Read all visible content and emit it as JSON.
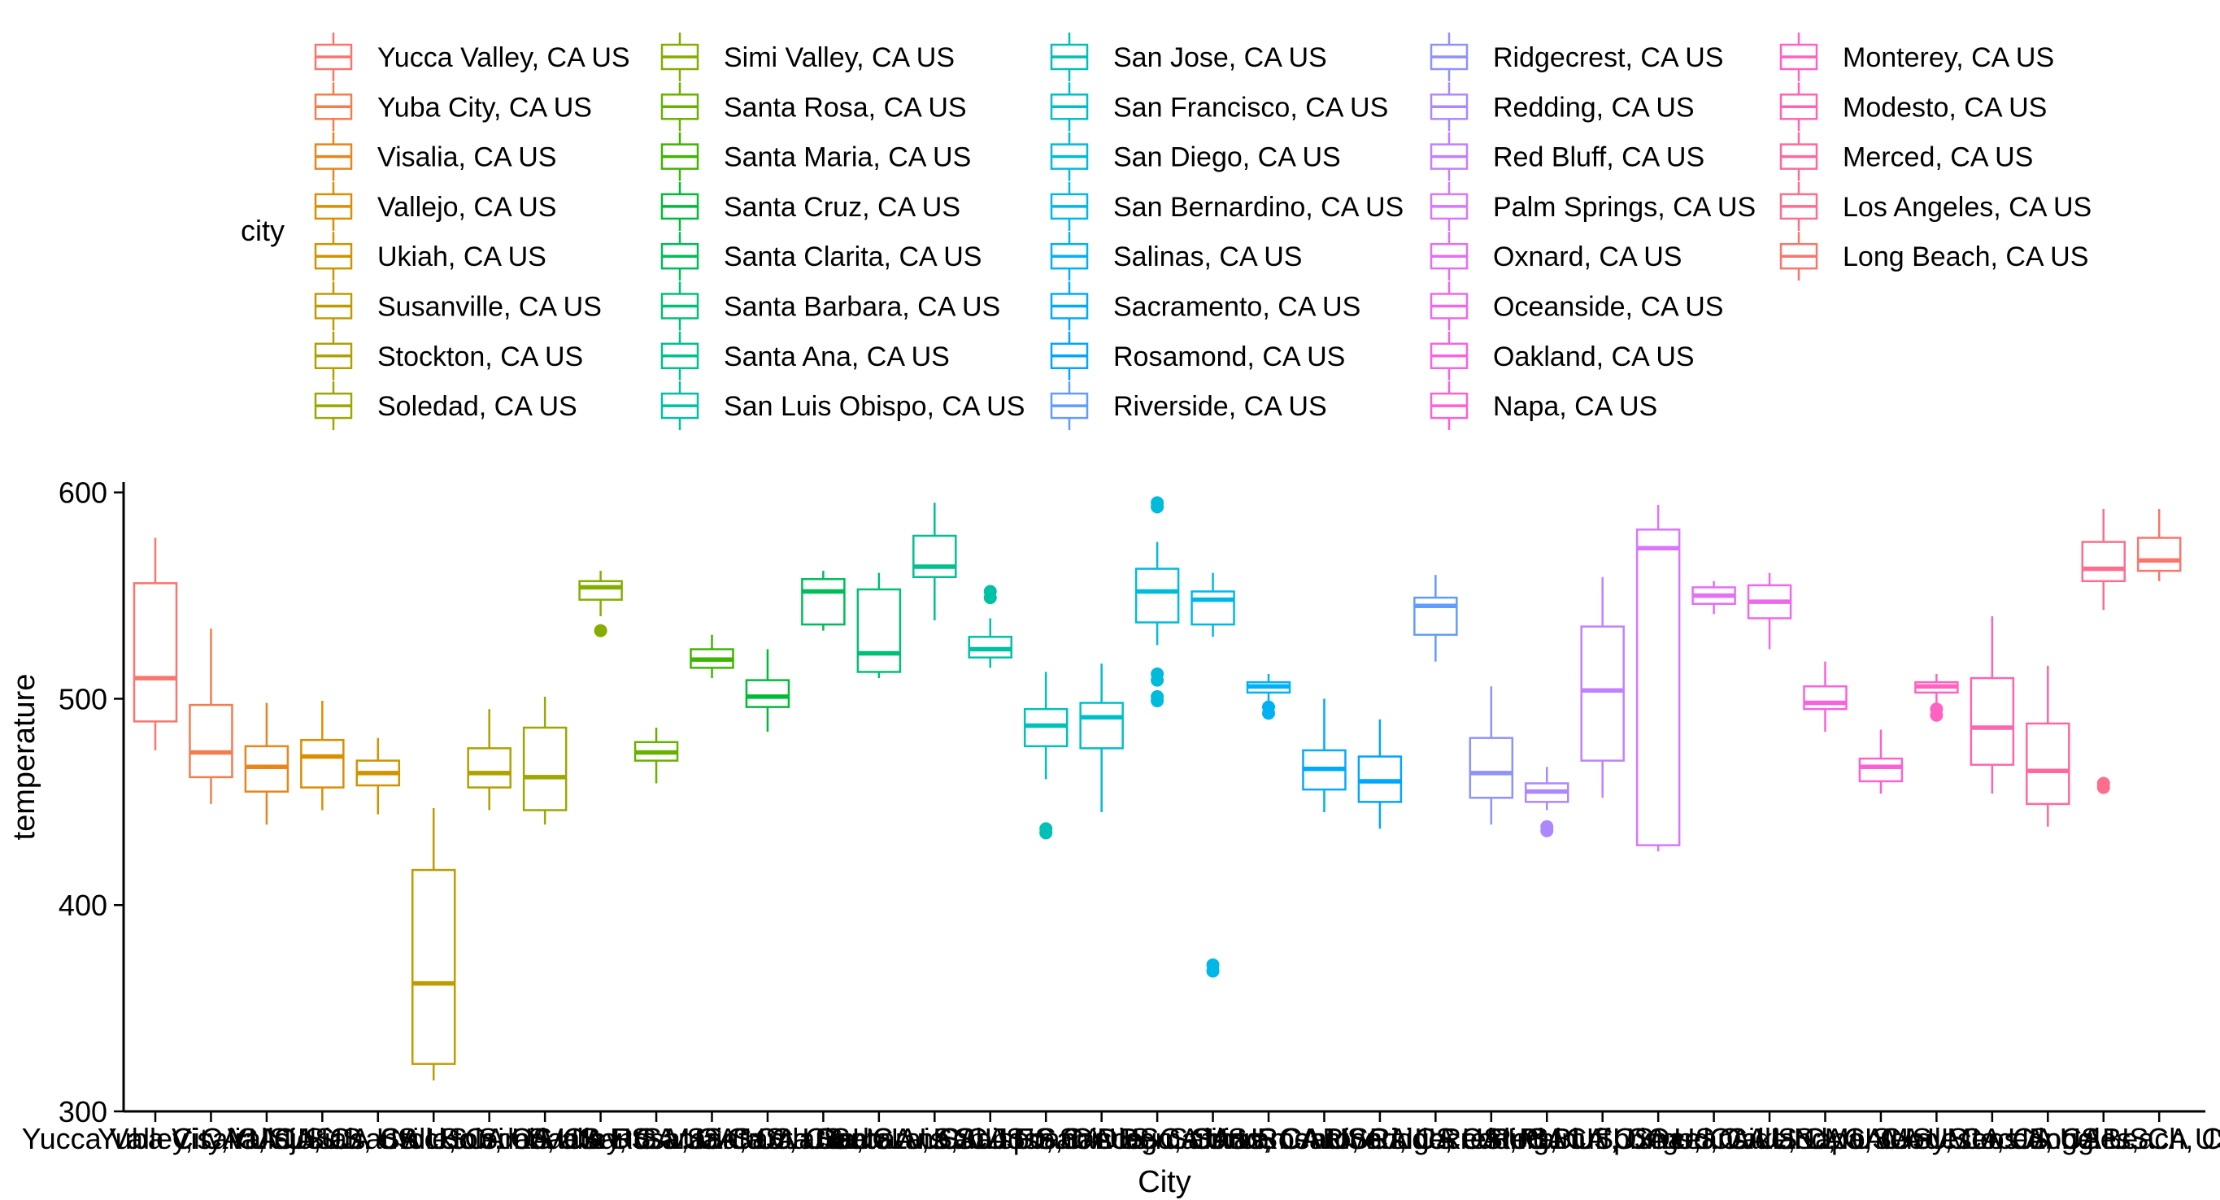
{
  "chart_data": {
    "type": "box",
    "xlabel": "City",
    "ylabel": "temperature",
    "legend_title": "city",
    "legend_position": "top",
    "grid": false,
    "ylim": [
      300,
      605
    ],
    "yticks": [
      300,
      400,
      500,
      600
    ],
    "categories": [
      "Yucca Valley, CA US",
      "Yuba City, CA US",
      "Visalia, CA US",
      "Vallejo, CA US",
      "Ukiah, CA US",
      "Susanville, CA US",
      "Stockton, CA US",
      "Soledad, CA US",
      "Simi Valley, CA US",
      "Santa Rosa, CA US",
      "Santa Maria, CA US",
      "Santa Cruz, CA US",
      "Santa Clarita, CA US",
      "Santa Barbara, CA US",
      "Santa Ana, CA US",
      "San Luis Obispo, CA US",
      "San Jose, CA US",
      "San Francisco, CA US",
      "San Diego, CA US",
      "San Bernardino, CA US",
      "Salinas, CA US",
      "Sacramento, CA US",
      "Rosamond, CA US",
      "Riverside, CA US",
      "Ridgecrest, CA US",
      "Redding, CA US",
      "Red Bluff, CA US",
      "Palm Springs, CA US",
      "Oxnard, CA US",
      "Oceanside, CA US",
      "Oakland, CA US",
      "Napa, CA US",
      "Monterey, CA US",
      "Modesto, CA US",
      "Merced, CA US",
      "Los Angeles, CA US",
      "Long Beach, CA US"
    ],
    "colors": [
      "#F8766D",
      "#F17E4F",
      "#E7861B",
      "#DB8E00",
      "#CF9400",
      "#C09B00",
      "#AFA100",
      "#9CA700",
      "#85AD00",
      "#68B100",
      "#3DB600",
      "#00BA38",
      "#00BC59",
      "#00BF76",
      "#00C08E",
      "#00C1A3",
      "#00C0B7",
      "#00BECA",
      "#00BBDA",
      "#00B8E7",
      "#00B2F3",
      "#00ABFD",
      "#00A5FF",
      "#619CFF",
      "#8F91FF",
      "#AC88FF",
      "#C37FFF",
      "#D876FF",
      "#E46EF6",
      "#EF67EB",
      "#F863DF",
      "#FD61D1",
      "#FF62C1",
      "#FF64B0",
      "#FF689F",
      "#FD6D8D",
      "#F8766D"
    ],
    "boxes": [
      {
        "min": 475,
        "q1": 489,
        "median": 510,
        "q3": 556,
        "max": 578,
        "outliers": []
      },
      {
        "min": 449,
        "q1": 462,
        "median": 474,
        "q3": 497,
        "max": 534,
        "outliers": []
      },
      {
        "min": 439,
        "q1": 455,
        "median": 467,
        "q3": 477,
        "max": 498,
        "outliers": []
      },
      {
        "min": 446,
        "q1": 457,
        "median": 472,
        "q3": 480,
        "max": 499,
        "outliers": []
      },
      {
        "min": 444,
        "q1": 458,
        "median": 464,
        "q3": 470,
        "max": 481,
        "outliers": []
      },
      {
        "min": 315,
        "q1": 323,
        "median": 362,
        "q3": 417,
        "max": 447,
        "outliers": []
      },
      {
        "min": 446,
        "q1": 457,
        "median": 464,
        "q3": 476,
        "max": 495,
        "outliers": []
      },
      {
        "min": 439,
        "q1": 446,
        "median": 462,
        "q3": 486,
        "max": 501,
        "outliers": []
      },
      {
        "min": 540,
        "q1": 548,
        "median": 554,
        "q3": 557,
        "max": 562,
        "outliers": [
          533
        ]
      },
      {
        "min": 459,
        "q1": 470,
        "median": 474,
        "q3": 479,
        "max": 486,
        "outliers": []
      },
      {
        "min": 510,
        "q1": 515,
        "median": 519,
        "q3": 524,
        "max": 531,
        "outliers": []
      },
      {
        "min": 484,
        "q1": 496,
        "median": 501,
        "q3": 509,
        "max": 524,
        "outliers": []
      },
      {
        "min": 533,
        "q1": 536,
        "median": 552,
        "q3": 558,
        "max": 562,
        "outliers": []
      },
      {
        "min": 510,
        "q1": 513,
        "median": 522,
        "q3": 553,
        "max": 561,
        "outliers": []
      },
      {
        "min": 538,
        "q1": 559,
        "median": 564,
        "q3": 579,
        "max": 595,
        "outliers": []
      },
      {
        "min": 515,
        "q1": 520,
        "median": 524,
        "q3": 530,
        "max": 539,
        "outliers": [
          549,
          552
        ]
      },
      {
        "min": 461,
        "q1": 477,
        "median": 487,
        "q3": 495,
        "max": 513,
        "outliers": [
          435,
          437
        ]
      },
      {
        "min": 445,
        "q1": 476,
        "median": 491,
        "q3": 498,
        "max": 517,
        "outliers": []
      },
      {
        "min": 526,
        "q1": 537,
        "median": 552,
        "q3": 563,
        "max": 576,
        "outliers": [
          499,
          501,
          509,
          512,
          593,
          595
        ]
      },
      {
        "min": 530,
        "q1": 536,
        "median": 548,
        "q3": 552,
        "max": 561,
        "outliers": [
          368,
          371
        ]
      },
      {
        "min": 498,
        "q1": 503,
        "median": 506,
        "q3": 508,
        "max": 512,
        "outliers": [
          493,
          496
        ]
      },
      {
        "min": 445,
        "q1": 456,
        "median": 466,
        "q3": 475,
        "max": 500,
        "outliers": []
      },
      {
        "min": 437,
        "q1": 450,
        "median": 460,
        "q3": 472,
        "max": 490,
        "outliers": []
      },
      {
        "min": 518,
        "q1": 531,
        "median": 545,
        "q3": 549,
        "max": 560,
        "outliers": []
      },
      {
        "min": 439,
        "q1": 452,
        "median": 464,
        "q3": 481,
        "max": 506,
        "outliers": []
      },
      {
        "min": 446,
        "q1": 450,
        "median": 455,
        "q3": 459,
        "max": 467,
        "outliers": [
          436,
          438
        ]
      },
      {
        "min": 452,
        "q1": 470,
        "median": 504,
        "q3": 535,
        "max": 559,
        "outliers": []
      },
      {
        "min": 426,
        "q1": 429,
        "median": 573,
        "q3": 582,
        "max": 594,
        "outliers": []
      },
      {
        "min": 541,
        "q1": 546,
        "median": 550,
        "q3": 554,
        "max": 557,
        "outliers": []
      },
      {
        "min": 524,
        "q1": 539,
        "median": 547,
        "q3": 555,
        "max": 561,
        "outliers": []
      },
      {
        "min": 484,
        "q1": 495,
        "median": 498,
        "q3": 506,
        "max": 518,
        "outliers": []
      },
      {
        "min": 454,
        "q1": 460,
        "median": 467,
        "q3": 471,
        "max": 485,
        "outliers": []
      },
      {
        "min": 498,
        "q1": 503,
        "median": 506,
        "q3": 508,
        "max": 512,
        "outliers": [
          492,
          495
        ]
      },
      {
        "min": 454,
        "q1": 468,
        "median": 486,
        "q3": 510,
        "max": 540,
        "outliers": []
      },
      {
        "min": 438,
        "q1": 449,
        "median": 465,
        "q3": 488,
        "max": 516,
        "outliers": []
      },
      {
        "min": 543,
        "q1": 557,
        "median": 563,
        "q3": 576,
        "max": 592,
        "outliers": [
          457,
          459
        ]
      },
      {
        "min": 557,
        "q1": 562,
        "median": 567,
        "q3": 578,
        "max": 592,
        "outliers": []
      }
    ]
  }
}
